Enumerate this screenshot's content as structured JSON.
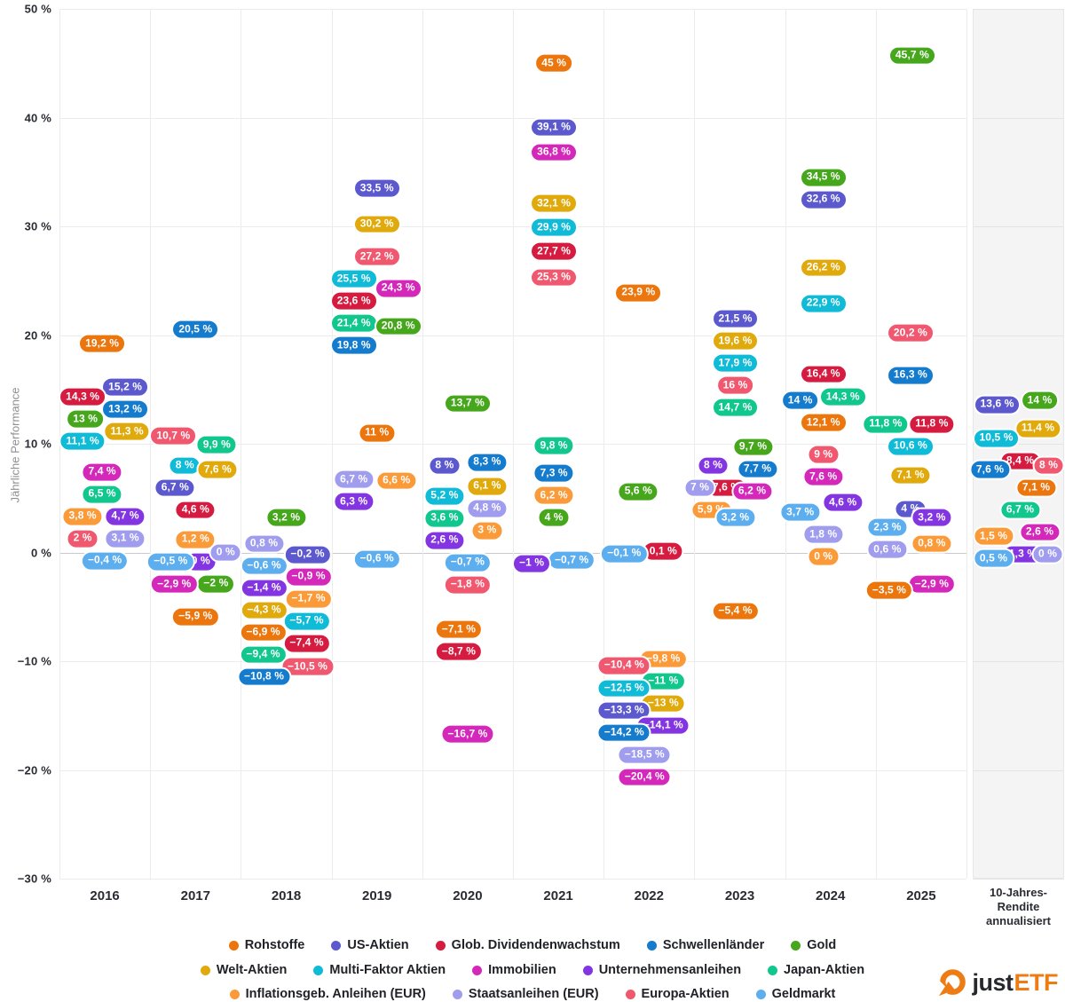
{
  "chart_data": {
    "type": "scatter",
    "title": "",
    "ylabel": "Jährliche Performance",
    "ylim": [
      -30,
      50
    ],
    "ytick_step": 10,
    "grid": true,
    "legend_position": "bottom",
    "value_suffix": " %",
    "decimal_separator": ",",
    "categories": [
      "2016",
      "2017",
      "2018",
      "2019",
      "2020",
      "2021",
      "2022",
      "2023",
      "2024",
      "2025",
      "10y"
    ],
    "panel_label_lines": [
      "10-Jahres-",
      "Rendite",
      "annualisiert"
    ],
    "series": [
      {
        "name": "Rohstoffe",
        "color": "#EB760D",
        "points": [
          {
            "c": 0,
            "v": 19.2,
            "dx": -3
          },
          {
            "c": 1,
            "v": -5.9,
            "dx": 0
          },
          {
            "c": 2,
            "v": -6.9,
            "dx": -26
          },
          {
            "c": 3,
            "v": 11,
            "dx": 0
          },
          {
            "c": 4,
            "v": -7.1,
            "dx": -10
          },
          {
            "c": 5,
            "v": 45,
            "dx": -5
          },
          {
            "c": 6,
            "v": 23.9,
            "dx": -12
          },
          {
            "c": 7,
            "v": -5.4,
            "dx": -5
          },
          {
            "c": 8,
            "v": 12.1,
            "dx": -8
          },
          {
            "c": 9,
            "v": -3.5,
            "dx": -36
          },
          {
            "c": 10,
            "v": 7.1,
            "dx": 20
          }
        ]
      },
      {
        "name": "US-Aktien",
        "color": "#5C58CE",
        "points": [
          {
            "c": 0,
            "v": 15.2,
            "dx": 23
          },
          {
            "c": 1,
            "v": 6.7,
            "dx": -23
          },
          {
            "c": 2,
            "v": -0.2,
            "dx": 24
          },
          {
            "c": 3,
            "v": 33.5,
            "dx": 0
          },
          {
            "c": 4,
            "v": 8,
            "dx": -26
          },
          {
            "c": 5,
            "v": 39.1,
            "dx": -5
          },
          {
            "c": 6,
            "v": -13.3,
            "dx": -28
          },
          {
            "c": 7,
            "v": 21.5,
            "dx": -5
          },
          {
            "c": 8,
            "v": 32.6,
            "dx": -8
          },
          {
            "c": 9,
            "v": 4,
            "dx": -12
          },
          {
            "c": 10,
            "v": 13.6,
            "dx": -24
          }
        ]
      },
      {
        "name": "Glob. Dividendenwachstum",
        "color": "#D51C40",
        "points": [
          {
            "c": 0,
            "v": 14.3,
            "dx": -25
          },
          {
            "c": 1,
            "v": 4.6,
            "dx": 0
          },
          {
            "c": 2,
            "v": -7.4,
            "dx": 23
          },
          {
            "c": 3,
            "v": 23.6,
            "dx": -26
          },
          {
            "c": 4,
            "v": -8.7,
            "dx": -10
          },
          {
            "c": 5,
            "v": 27.7,
            "dx": -5
          },
          {
            "c": 6,
            "v": 0.1,
            "dx": 16
          },
          {
            "c": 7,
            "v": 7.6,
            "dx": -15
          },
          {
            "c": 8,
            "v": 16.4,
            "dx": -8
          },
          {
            "c": 9,
            "v": 11.8,
            "dx": 12
          },
          {
            "c": 10,
            "v": 8.4,
            "dx": 2
          }
        ]
      },
      {
        "name": "Schwellenländer",
        "color": "#157BCD",
        "points": [
          {
            "c": 0,
            "v": 13.2,
            "dx": 23
          },
          {
            "c": 1,
            "v": 20.5,
            "dx": 0
          },
          {
            "c": 2,
            "v": -10.8,
            "dx": -25
          },
          {
            "c": 3,
            "v": 19.8,
            "dx": -26
          },
          {
            "c": 4,
            "v": 8.3,
            "dx": 22
          },
          {
            "c": 5,
            "v": 7.3,
            "dx": -5
          },
          {
            "c": 6,
            "v": -14.2,
            "dx": -28
          },
          {
            "c": 7,
            "v": 7.7,
            "dx": 20
          },
          {
            "c": 8,
            "v": 14,
            "dx": -34
          },
          {
            "c": 9,
            "v": 16.3,
            "dx": -12
          },
          {
            "c": 10,
            "v": 7.6,
            "dx": -32
          }
        ]
      },
      {
        "name": "Gold",
        "color": "#46A71D",
        "points": [
          {
            "c": 0,
            "v": 13,
            "dx": -22
          },
          {
            "c": 1,
            "v": -2,
            "dx": 23
          },
          {
            "c": 2,
            "v": 3.2,
            "dx": 0
          },
          {
            "c": 3,
            "v": 20.8,
            "dx": 24
          },
          {
            "c": 4,
            "v": 13.7,
            "dx": 0
          },
          {
            "c": 5,
            "v": 4,
            "dx": -5
          },
          {
            "c": 6,
            "v": 5.6,
            "dx": -12
          },
          {
            "c": 7,
            "v": 9.7,
            "dx": 15
          },
          {
            "c": 8,
            "v": 34.5,
            "dx": -8
          },
          {
            "c": 9,
            "v": 45.7,
            "dx": -10
          },
          {
            "c": 10,
            "v": 14,
            "dx": 24
          }
        ]
      },
      {
        "name": "Welt-Aktien",
        "color": "#E0A90C",
        "points": [
          {
            "c": 0,
            "v": 11.3,
            "dx": 25
          },
          {
            "c": 1,
            "v": 7.6,
            "dx": 25
          },
          {
            "c": 2,
            "v": -4.3,
            "dx": -25
          },
          {
            "c": 3,
            "v": 30.2,
            "dx": 0
          },
          {
            "c": 4,
            "v": 6.1,
            "dx": 22
          },
          {
            "c": 5,
            "v": 32.1,
            "dx": -5
          },
          {
            "c": 6,
            "v": -13,
            "dx": 16
          },
          {
            "c": 7,
            "v": 19.6,
            "dx": -5
          },
          {
            "c": 8,
            "v": 26.2,
            "dx": -8
          },
          {
            "c": 9,
            "v": 7.1,
            "dx": -12
          },
          {
            "c": 10,
            "v": 11.4,
            "dx": 22
          }
        ]
      },
      {
        "name": "Multi-Faktor Aktien",
        "color": "#10BBD7",
        "points": [
          {
            "c": 0,
            "v": 11.1,
            "dx": -25
          },
          {
            "c": 1,
            "v": 8,
            "dx": -12
          },
          {
            "c": 2,
            "v": -5.7,
            "dx": 23
          },
          {
            "c": 3,
            "v": 25.5,
            "dx": -26
          },
          {
            "c": 4,
            "v": 5.2,
            "dx": -26
          },
          {
            "c": 5,
            "v": 29.9,
            "dx": -5
          },
          {
            "c": 6,
            "v": -12.5,
            "dx": -28
          },
          {
            "c": 7,
            "v": 17.9,
            "dx": -5
          },
          {
            "c": 8,
            "v": 22.9,
            "dx": -8
          },
          {
            "c": 9,
            "v": 10.6,
            "dx": -12
          },
          {
            "c": 10,
            "v": 10.5,
            "dx": -25
          }
        ]
      },
      {
        "name": "Immobilien",
        "color": "#D428BA",
        "points": [
          {
            "c": 0,
            "v": 7.4,
            "dx": -3
          },
          {
            "c": 1,
            "v": -2.9,
            "dx": -24
          },
          {
            "c": 2,
            "v": -0.9,
            "dx": 25
          },
          {
            "c": 3,
            "v": 24.3,
            "dx": 24
          },
          {
            "c": 4,
            "v": -16.7,
            "dx": 0
          },
          {
            "c": 5,
            "v": 36.8,
            "dx": -5
          },
          {
            "c": 6,
            "v": -20.4,
            "dx": -5
          },
          {
            "c": 7,
            "v": 6.2,
            "dx": 14
          },
          {
            "c": 8,
            "v": 7.6,
            "dx": -8
          },
          {
            "c": 9,
            "v": -2.9,
            "dx": 12
          },
          {
            "c": 10,
            "v": 2.6,
            "dx": 24
          }
        ]
      },
      {
        "name": "Unternehmensanleihen",
        "color": "#8335E1",
        "points": [
          {
            "c": 0,
            "v": 4.7,
            "dx": 23
          },
          {
            "c": 1,
            "v": 0,
            "dx": 6
          },
          {
            "c": 2,
            "v": -1.4,
            "dx": -25
          },
          {
            "c": 3,
            "v": 6.3,
            "dx": -26
          },
          {
            "c": 4,
            "v": 2.6,
            "dx": -26
          },
          {
            "c": 5,
            "v": -1,
            "dx": -30
          },
          {
            "c": 6,
            "v": -14.1,
            "dx": 16
          },
          {
            "c": 7,
            "v": 8,
            "dx": -30
          },
          {
            "c": 8,
            "v": 4.6,
            "dx": 14
          },
          {
            "c": 9,
            "v": 3.2,
            "dx": 12
          },
          {
            "c": 10,
            "v": 1.3,
            "dx": 5
          }
        ]
      },
      {
        "name": "Japan-Aktien",
        "color": "#12C78E",
        "points": [
          {
            "c": 0,
            "v": 6.5,
            "dx": -3
          },
          {
            "c": 1,
            "v": 9.9,
            "dx": 24
          },
          {
            "c": 2,
            "v": -9.4,
            "dx": -26
          },
          {
            "c": 3,
            "v": 21.4,
            "dx": -26
          },
          {
            "c": 4,
            "v": 3.6,
            "dx": -26
          },
          {
            "c": 5,
            "v": 9.8,
            "dx": -5
          },
          {
            "c": 6,
            "v": -11,
            "dx": 16
          },
          {
            "c": 7,
            "v": 14.7,
            "dx": -5
          },
          {
            "c": 8,
            "v": 14.3,
            "dx": 14
          },
          {
            "c": 9,
            "v": 11.8,
            "dx": -40
          },
          {
            "c": 10,
            "v": 6.7,
            "dx": 2
          }
        ]
      },
      {
        "name": "Inflationsgeb. Anleihen (EUR)",
        "color": "#FB9A38",
        "points": [
          {
            "c": 0,
            "v": 3.8,
            "dx": -25
          },
          {
            "c": 1,
            "v": 1.2,
            "dx": 0
          },
          {
            "c": 2,
            "v": -1.7,
            "dx": 25
          },
          {
            "c": 3,
            "v": 6.6,
            "dx": 22
          },
          {
            "c": 4,
            "v": 3,
            "dx": 22
          },
          {
            "c": 5,
            "v": 6.2,
            "dx": -5
          },
          {
            "c": 6,
            "v": -9.8,
            "dx": 16
          },
          {
            "c": 7,
            "v": 5.9,
            "dx": -32
          },
          {
            "c": 8,
            "v": 0,
            "dx": -8
          },
          {
            "c": 9,
            "v": 0.8,
            "dx": 12
          },
          {
            "c": 10,
            "v": 1.5,
            "dx": -28
          }
        ]
      },
      {
        "name": "Staatsanleihen (EUR)",
        "color": "#A09CEE",
        "points": [
          {
            "c": 0,
            "v": 3.1,
            "dx": 23
          },
          {
            "c": 1,
            "v": 0,
            "dx": 34
          },
          {
            "c": 2,
            "v": 0.8,
            "dx": -25
          },
          {
            "c": 3,
            "v": 6.7,
            "dx": -26
          },
          {
            "c": 4,
            "v": 4.8,
            "dx": 22
          },
          {
            "c": 6,
            "v": -18.5,
            "dx": -5
          },
          {
            "c": 7,
            "v": 7,
            "dx": -45
          },
          {
            "c": 8,
            "v": 1.8,
            "dx": -8
          },
          {
            "c": 9,
            "v": 0.6,
            "dx": -38
          },
          {
            "c": 10,
            "v": 0,
            "dx": 33
          }
        ]
      },
      {
        "name": "Europa-Aktien",
        "color": "#F0586F",
        "points": [
          {
            "c": 0,
            "v": 2,
            "dx": -25
          },
          {
            "c": 1,
            "v": 10.7,
            "dx": -25
          },
          {
            "c": 2,
            "v": -10.5,
            "dx": 24
          },
          {
            "c": 3,
            "v": 27.2,
            "dx": 0
          },
          {
            "c": 4,
            "v": -1.8,
            "dx": 0
          },
          {
            "c": 5,
            "v": 25.3,
            "dx": -5
          },
          {
            "c": 6,
            "v": -10.4,
            "dx": -28
          },
          {
            "c": 7,
            "v": 16,
            "dx": -5
          },
          {
            "c": 8,
            "v": 9,
            "dx": -8
          },
          {
            "c": 9,
            "v": 20.2,
            "dx": -12
          },
          {
            "c": 10,
            "v": 8,
            "dx": 34
          }
        ]
      },
      {
        "name": "Geldmarkt",
        "color": "#5CAEEE",
        "points": [
          {
            "c": 0,
            "v": -0.4,
            "dx": 0
          },
          {
            "c": 1,
            "v": -0.5,
            "dx": -28
          },
          {
            "c": 2,
            "v": -0.6,
            "dx": -25
          },
          {
            "c": 3,
            "v": -0.6,
            "dx": 0
          },
          {
            "c": 4,
            "v": -0.7,
            "dx": 0
          },
          {
            "c": 5,
            "v": -0.7,
            "dx": 15
          },
          {
            "c": 6,
            "v": -0.1,
            "dx": -28
          },
          {
            "c": 7,
            "v": 3.2,
            "dx": -5
          },
          {
            "c": 8,
            "v": 3.7,
            "dx": -34
          },
          {
            "c": 9,
            "v": 2.3,
            "dx": -38
          },
          {
            "c": 10,
            "v": 0.5,
            "dx": -28
          }
        ]
      }
    ]
  },
  "legend": {
    "rows": [
      [
        0,
        1,
        2,
        3,
        4
      ],
      [
        5,
        6,
        7,
        8,
        9
      ],
      [
        10,
        11,
        12,
        13
      ]
    ]
  },
  "logo": {
    "text_dark": "just",
    "text_accent": "ETF",
    "accent_color": "#EE7C15"
  }
}
